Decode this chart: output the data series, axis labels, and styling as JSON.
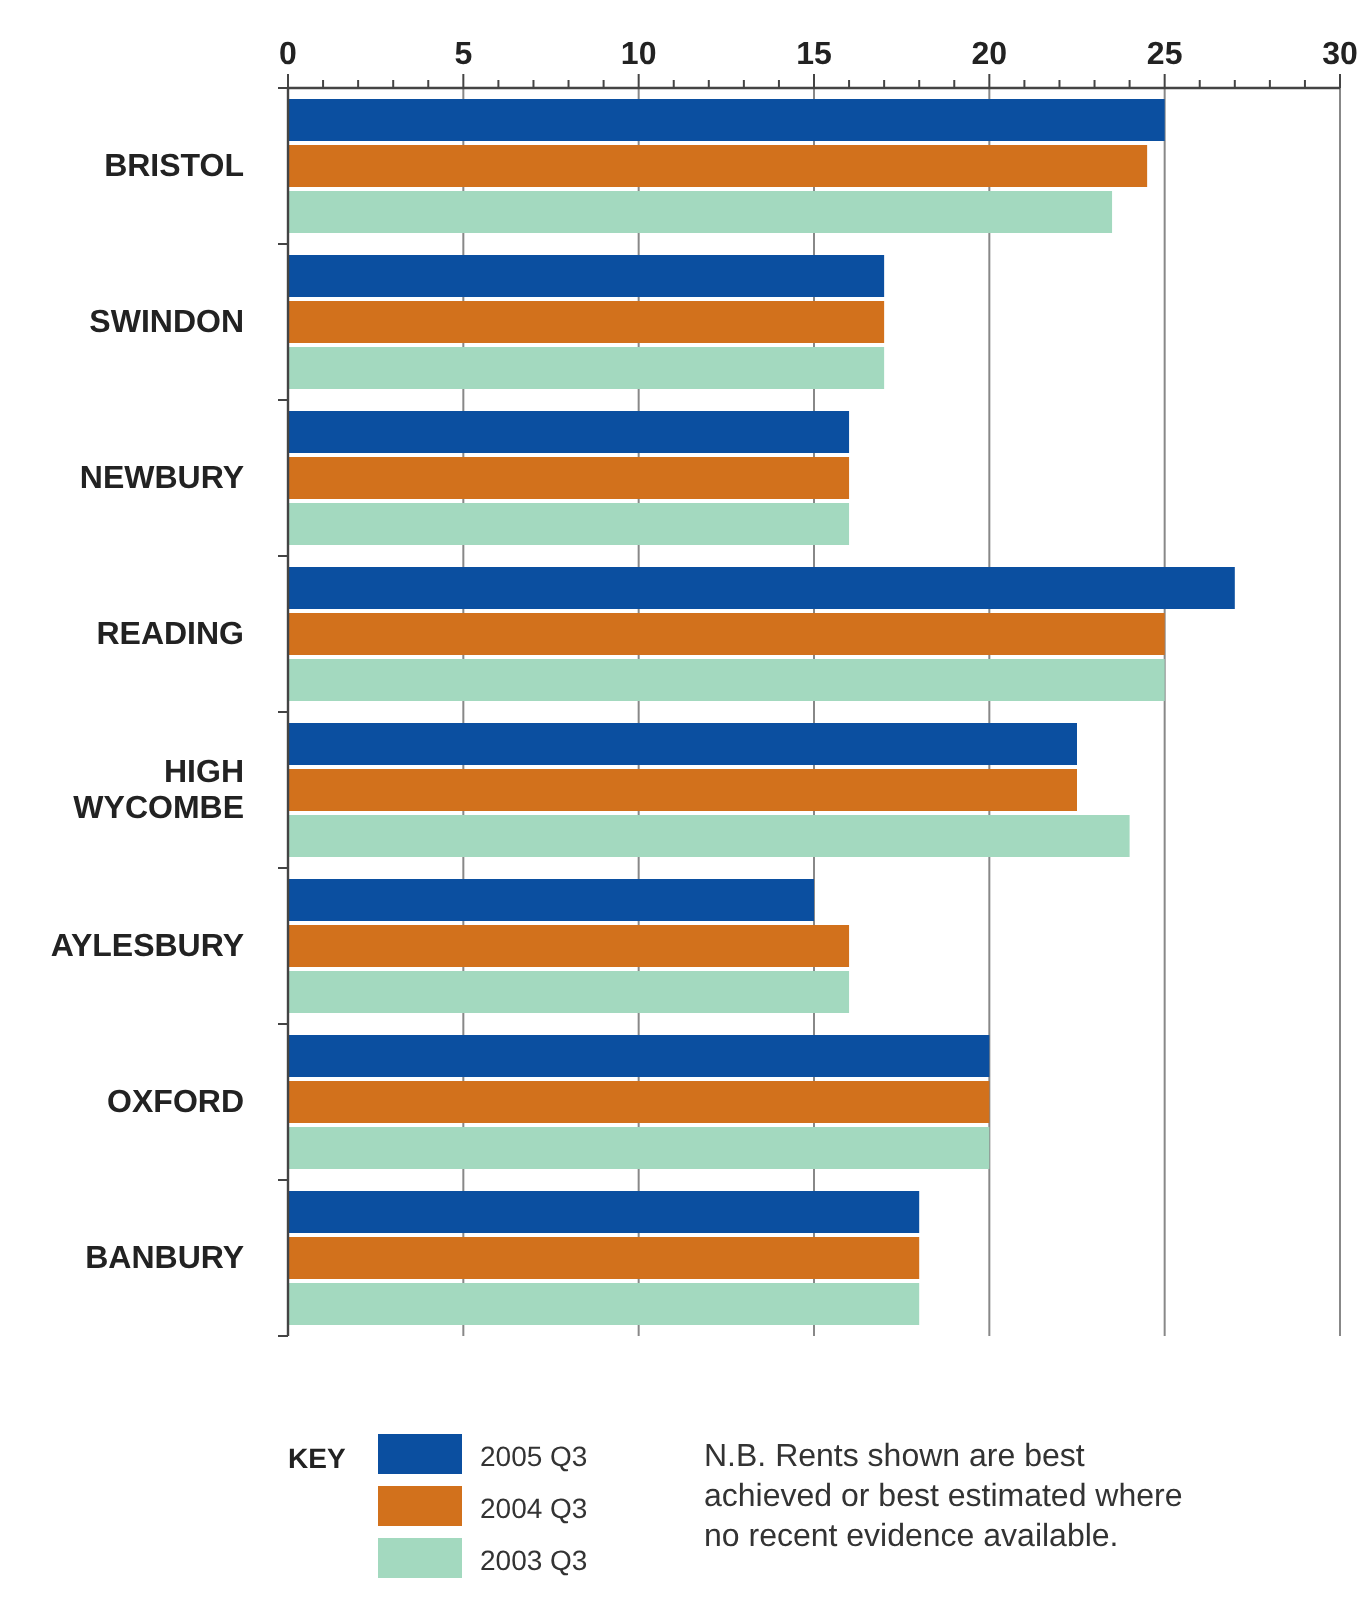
{
  "chart_data": {
    "type": "bar",
    "orientation": "horizontal",
    "categories": [
      "BRISTOL",
      "SWINDON",
      "NEWBURY",
      "READING",
      "HIGH WYCOMBE",
      "AYLESBURY",
      "OXFORD",
      "BANBURY"
    ],
    "series": [
      {
        "name": "2005 Q3",
        "color": "#0b4fa0",
        "values": [
          25,
          17,
          16,
          27,
          22.5,
          15,
          20,
          18
        ]
      },
      {
        "name": "2004 Q3",
        "color": "#d2711c",
        "values": [
          24.5,
          17,
          16,
          25,
          22.5,
          16,
          20,
          18
        ]
      },
      {
        "name": "2003 Q3",
        "color": "#a3d9bf",
        "values": [
          23.5,
          17,
          16,
          25,
          24,
          16,
          20,
          18
        ]
      }
    ],
    "xlim": [
      0,
      30
    ],
    "xticks": [
      0,
      {
        "value": 1,
        "label": null
      },
      {
        "value": 2,
        "label": null
      },
      {
        "value": 3,
        "label": null
      },
      {
        "value": 4,
        "label": null
      },
      5,
      {
        "value": 6,
        "label": null
      },
      {
        "value": 7,
        "label": null
      },
      {
        "value": 8,
        "label": null
      },
      {
        "value": 9,
        "label": null
      },
      10,
      {
        "value": 11,
        "label": null
      },
      {
        "value": 12,
        "label": null
      },
      {
        "value": 13,
        "label": null
      },
      {
        "value": 14,
        "label": null
      },
      15,
      {
        "value": 16,
        "label": null
      },
      {
        "value": 17,
        "label": null
      },
      {
        "value": 18,
        "label": null
      },
      {
        "value": 19,
        "label": null
      },
      20,
      {
        "value": 21,
        "label": null
      },
      {
        "value": 22,
        "label": null
      },
      {
        "value": 23,
        "label": null
      },
      {
        "value": 24,
        "label": null
      },
      25,
      {
        "value": 26,
        "label": null
      },
      {
        "value": 27,
        "label": null
      },
      {
        "value": 28,
        "label": null
      },
      {
        "value": 29,
        "label": null
      },
      30
    ],
    "grid": "x",
    "legend": "bottom left",
    "legend_title": "KEY",
    "annotations": [
      "N.B. Rents shown are best achieved or best estimated where no recent evidence available."
    ]
  }
}
